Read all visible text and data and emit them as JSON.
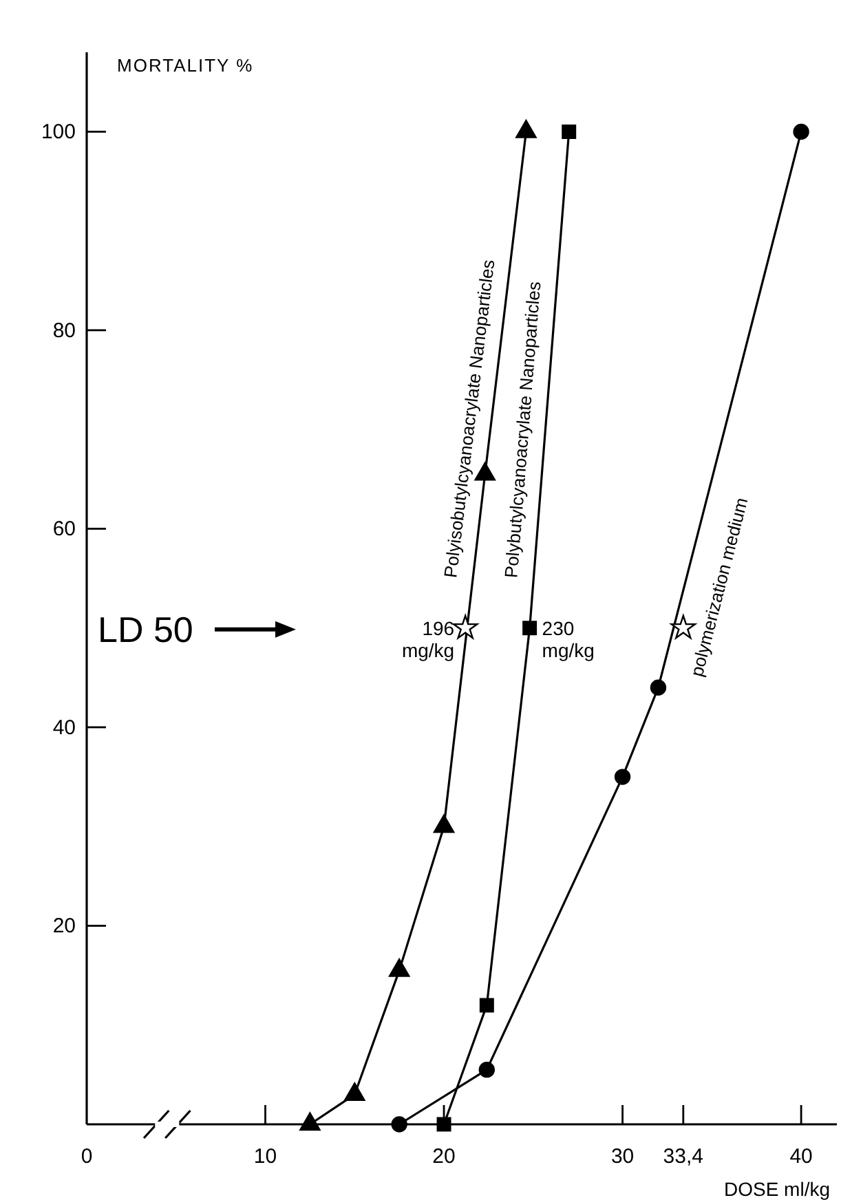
{
  "chart_data": {
    "type": "line",
    "xlabel": "DOSE ml/kg",
    "ylabel": "MORTALITY %",
    "xlim": [
      0,
      42
    ],
    "xticks": [
      0,
      10,
      20,
      30,
      {
        "value": 33.4,
        "label": "33,4"
      },
      40
    ],
    "ylim": [
      0,
      108
    ],
    "yticks": [
      20,
      40,
      60,
      80,
      100
    ],
    "series": [
      {
        "name": "Polyisobutylcyanoacrylate Nanoparticles",
        "color": "#000000",
        "marker": "triangle",
        "x": [
          12.5,
          15,
          17.5,
          20,
          22.3,
          24.6
        ],
        "values": [
          0,
          3,
          15.5,
          30,
          65.5,
          100
        ]
      },
      {
        "name": "Polybutylcyanoacrylate Nanoparticles",
        "color": "#000000",
        "marker": "square",
        "x": [
          20,
          22.4,
          24.8,
          27
        ],
        "values": [
          0,
          12,
          50,
          100
        ]
      },
      {
        "name": "polymerization medium",
        "color": "#000000",
        "marker": "circle",
        "x": [
          17.5,
          22.4,
          30,
          32,
          40
        ],
        "values": [
          0,
          5.5,
          35,
          44,
          100
        ]
      },
      {
        "type": "scatter",
        "color": "#ffffff",
        "marker": "star",
        "x": [
          21.2,
          33.4
        ],
        "values": [
          50,
          50
        ]
      }
    ],
    "annotations": [
      "LD 50",
      {
        "text": "196 mg/kg",
        "x": 21.2,
        "y": 50
      },
      {
        "text": "230 mg/kg",
        "x": 24.8,
        "y": 50
      }
    ]
  }
}
